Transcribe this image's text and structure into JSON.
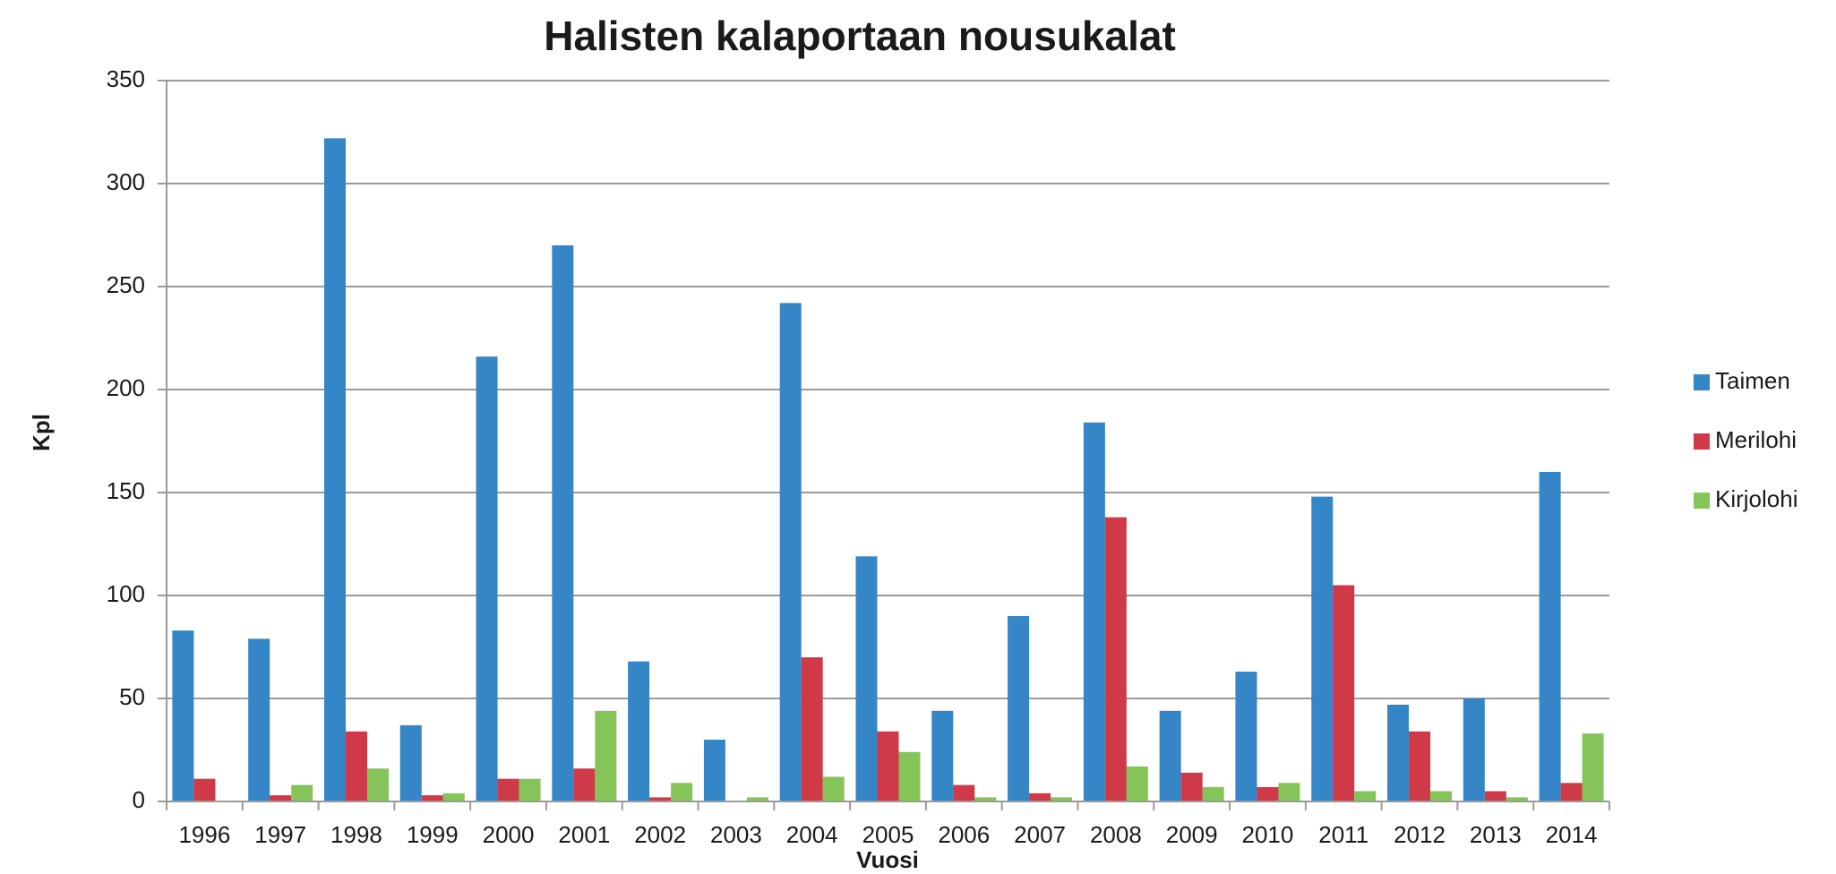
{
  "chart_data": {
    "type": "bar",
    "title": "Halisten kalaportaan nousukalat",
    "x_label": "Vuosi",
    "y_label": "Kpl",
    "categories": [
      "1996",
      "1997",
      "1998",
      "1999",
      "2000",
      "2001",
      "2002",
      "2003",
      "2004",
      "2005",
      "2006",
      "2007",
      "2008",
      "2009",
      "2010",
      "2011",
      "2012",
      "2013",
      "2014"
    ],
    "series": [
      {
        "name": "Taimen",
        "color": "#3586c6",
        "values": [
          83,
          79,
          322,
          37,
          216,
          270,
          68,
          30,
          242,
          119,
          44,
          90,
          184,
          44,
          63,
          148,
          47,
          50,
          160
        ]
      },
      {
        "name": "Merilohi",
        "color": "#d03a48",
        "values": [
          11,
          3,
          34,
          3,
          11,
          16,
          2,
          0,
          70,
          34,
          8,
          4,
          138,
          14,
          7,
          105,
          34,
          5,
          9
        ]
      },
      {
        "name": "Kirjolohi",
        "color": "#84c459",
        "values": [
          0,
          8,
          16,
          4,
          11,
          44,
          9,
          2,
          12,
          24,
          2,
          2,
          17,
          7,
          9,
          5,
          5,
          2,
          33
        ]
      }
    ],
    "ylim": [
      0,
      350
    ],
    "yticks": [
      0,
      50,
      100,
      150,
      200,
      250,
      300,
      350
    ],
    "grid": true,
    "legend": "right"
  }
}
